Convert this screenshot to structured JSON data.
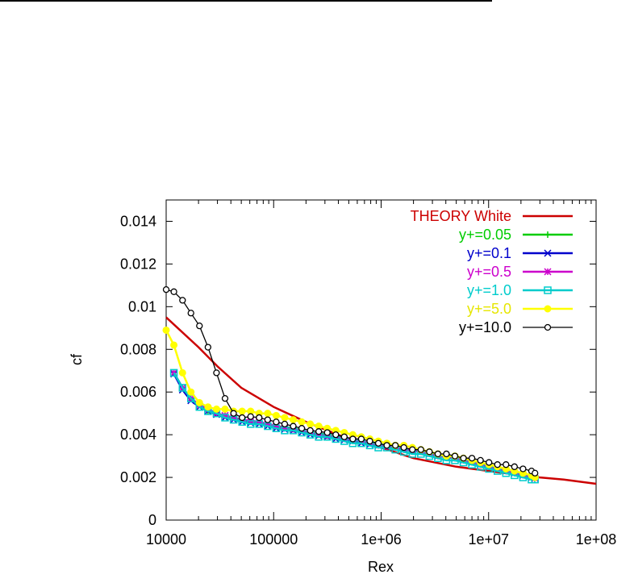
{
  "chart_data": {
    "type": "line",
    "xlabel": "Rex",
    "ylabel": "cf",
    "xscale": "log",
    "xlim": [
      10000,
      100000000
    ],
    "ylim": [
      0,
      0.015
    ],
    "xticks": [
      10000,
      100000,
      1000000,
      10000000,
      100000000
    ],
    "xtick_labels": [
      "10000",
      "100000",
      "1e+06",
      "1e+07",
      "1e+08"
    ],
    "yticks": [
      0,
      0.002,
      0.004,
      0.006,
      0.008,
      0.01,
      0.012,
      0.014
    ],
    "ytick_labels": [
      "0",
      "0.002",
      "0.004",
      "0.006",
      "0.008",
      "0.01",
      "0.012",
      "0.014"
    ],
    "grid": false,
    "legend_position": "top-right",
    "series": [
      {
        "name": "THEORY White",
        "color": "#cc0000",
        "marker": "none",
        "x": [
          10000,
          20000,
          30000,
          50000,
          100000,
          200000,
          500000,
          1000000,
          2000000,
          5000000,
          10000000,
          20000000,
          30000000,
          50000000,
          100000000
        ],
        "y": [
          0.0095,
          0.0081,
          0.0072,
          0.0062,
          0.0053,
          0.0046,
          0.0038,
          0.0034,
          0.0029,
          0.0025,
          0.0023,
          0.0021,
          0.002,
          0.0019,
          0.0017
        ]
      },
      {
        "name": "y+=0.05",
        "color": "#00cc00",
        "marker": "plus",
        "x": [
          11800,
          14200,
          17000,
          20400,
          24500,
          29400,
          35300,
          42400,
          50900,
          61100,
          73300,
          88000,
          105600,
          126700,
          152100,
          182500,
          219000,
          262800,
          315400,
          378500,
          454200,
          545000,
          654000,
          784800,
          941800,
          1130000,
          1356000,
          1627000,
          1953000,
          2344000,
          2812000,
          3375000,
          4050000,
          4860000,
          5832000,
          6998000,
          8398000,
          10078000,
          12093000,
          14512000,
          17414000,
          20897000,
          25076000,
          27000000
        ],
        "y": [
          0.0069,
          0.0062,
          0.0057,
          0.0054,
          0.0051,
          0.005,
          0.0049,
          0.0048,
          0.0047,
          0.00465,
          0.0046,
          0.0045,
          0.0044,
          0.00435,
          0.0043,
          0.0042,
          0.0041,
          0.00405,
          0.004,
          0.0039,
          0.00385,
          0.0038,
          0.0037,
          0.0036,
          0.00355,
          0.0035,
          0.0034,
          0.0033,
          0.00325,
          0.0032,
          0.0031,
          0.003,
          0.00295,
          0.0029,
          0.0028,
          0.0027,
          0.0026,
          0.0025,
          0.0024,
          0.0023,
          0.0022,
          0.0021,
          0.002,
          0.00195
        ]
      },
      {
        "name": "y+=0.1",
        "color": "#0000cc",
        "marker": "cross",
        "x": [
          11800,
          14200,
          17000,
          20400,
          24500,
          29400,
          35300,
          42400,
          50900,
          61100,
          73300,
          88000,
          105600,
          126700,
          152100,
          182500,
          219000,
          262800,
          315400,
          378500,
          454200,
          545000,
          654000,
          784800,
          941800,
          1130000,
          1356000,
          1627000,
          1953000,
          2344000,
          2812000,
          3375000,
          4050000,
          4860000,
          5832000,
          6998000,
          8398000,
          10078000,
          12093000,
          14512000,
          17414000,
          20897000,
          25076000,
          27000000
        ],
        "y": [
          0.00685,
          0.0061,
          0.0056,
          0.0053,
          0.0051,
          0.00495,
          0.0048,
          0.0047,
          0.0046,
          0.00455,
          0.0045,
          0.0044,
          0.0043,
          0.00425,
          0.0042,
          0.0041,
          0.004,
          0.00395,
          0.0039,
          0.0038,
          0.00375,
          0.0037,
          0.0036,
          0.00355,
          0.0035,
          0.00345,
          0.0034,
          0.0033,
          0.00325,
          0.0032,
          0.0031,
          0.003,
          0.00295,
          0.0029,
          0.0028,
          0.0027,
          0.0026,
          0.0025,
          0.0024,
          0.0023,
          0.0022,
          0.0021,
          0.002,
          0.00195
        ]
      },
      {
        "name": "y+=0.5",
        "color": "#cc00cc",
        "marker": "star",
        "x": [
          11800,
          14200,
          17000,
          20400,
          24500,
          29400,
          35300,
          42400,
          50900,
          61100,
          73300,
          88000,
          105600,
          126700,
          152100,
          182500,
          219000,
          262800,
          315400,
          378500,
          454200,
          545000,
          654000,
          784800,
          941800,
          1130000,
          1356000,
          1627000,
          1953000,
          2344000,
          2812000,
          3375000,
          4050000,
          4860000,
          5832000,
          6998000,
          8398000,
          10078000,
          12093000,
          14512000,
          17414000,
          20897000,
          25076000,
          27000000
        ],
        "y": [
          0.0069,
          0.0062,
          0.0057,
          0.0054,
          0.0052,
          0.005,
          0.0049,
          0.0048,
          0.0047,
          0.00465,
          0.0046,
          0.0045,
          0.0044,
          0.0043,
          0.00425,
          0.0042,
          0.0041,
          0.004,
          0.00395,
          0.0039,
          0.0038,
          0.00375,
          0.0037,
          0.0036,
          0.0035,
          0.00345,
          0.0034,
          0.0033,
          0.00325,
          0.0032,
          0.0031,
          0.003,
          0.00295,
          0.0029,
          0.0028,
          0.0027,
          0.0026,
          0.0025,
          0.0024,
          0.0023,
          0.0022,
          0.0021,
          0.002,
          0.00195
        ]
      },
      {
        "name": "y+=1.0",
        "color": "#00cccc",
        "marker": "square",
        "x": [
          11800,
          14200,
          17000,
          20400,
          24500,
          29400,
          35300,
          42400,
          50900,
          61100,
          73300,
          88000,
          105600,
          126700,
          152100,
          182500,
          219000,
          262800,
          315400,
          378500,
          454200,
          545000,
          654000,
          784800,
          941800,
          1130000,
          1356000,
          1627000,
          1953000,
          2344000,
          2812000,
          3375000,
          4050000,
          4860000,
          5832000,
          6998000,
          8398000,
          10078000,
          12093000,
          14512000,
          17414000,
          20897000,
          25076000,
          27000000
        ],
        "y": [
          0.0069,
          0.0062,
          0.0057,
          0.0053,
          0.0051,
          0.005,
          0.0048,
          0.0047,
          0.0046,
          0.0045,
          0.0045,
          0.0044,
          0.0043,
          0.0042,
          0.0042,
          0.0041,
          0.004,
          0.0039,
          0.0039,
          0.0038,
          0.0037,
          0.0036,
          0.0036,
          0.0035,
          0.0034,
          0.0034,
          0.0033,
          0.0032,
          0.0031,
          0.0031,
          0.003,
          0.0029,
          0.0028,
          0.0028,
          0.0027,
          0.0026,
          0.0025,
          0.0024,
          0.0023,
          0.0022,
          0.0021,
          0.002,
          0.0019,
          0.0019
        ]
      },
      {
        "name": "y+=5.0",
        "color": "#ffff00",
        "marker": "filled-circle",
        "x": [
          10000,
          11800,
          14200,
          17000,
          20400,
          24500,
          29400,
          35300,
          42400,
          50900,
          61100,
          73300,
          88000,
          105600,
          126700,
          152100,
          182500,
          219000,
          262800,
          315400,
          378500,
          454200,
          545000,
          654000,
          784800,
          941800,
          1130000,
          1356000,
          1627000,
          1953000,
          2344000,
          2812000,
          3375000,
          4050000,
          4860000,
          5832000,
          6998000,
          8398000,
          10078000,
          12093000,
          14512000,
          17414000,
          20897000,
          25076000,
          27000000
        ],
        "y": [
          0.0089,
          0.0082,
          0.0069,
          0.006,
          0.0055,
          0.0053,
          0.0052,
          0.0052,
          0.0051,
          0.0051,
          0.0051,
          0.005,
          0.005,
          0.0049,
          0.0048,
          0.0047,
          0.0046,
          0.0045,
          0.0044,
          0.0043,
          0.0042,
          0.0041,
          0.004,
          0.0039,
          0.0038,
          0.0037,
          0.0036,
          0.0035,
          0.0035,
          0.0034,
          0.0033,
          0.0032,
          0.0031,
          0.003,
          0.003,
          0.0029,
          0.0028,
          0.0027,
          0.0026,
          0.0025,
          0.0024,
          0.0023,
          0.0022,
          0.0021,
          0.002
        ]
      },
      {
        "name": "y+=10.0",
        "color": "#000000",
        "marker": "open-circle",
        "x": [
          10000,
          11800,
          14200,
          17000,
          20400,
          24500,
          29400,
          35300,
          42400,
          50900,
          61100,
          73300,
          88000,
          105600,
          126700,
          152100,
          182500,
          219000,
          262800,
          315400,
          378500,
          454200,
          545000,
          654000,
          784800,
          941800,
          1130000,
          1356000,
          1627000,
          1953000,
          2344000,
          2812000,
          3375000,
          4050000,
          4860000,
          5832000,
          6998000,
          8398000,
          10078000,
          12093000,
          14512000,
          17414000,
          20897000,
          25076000,
          27000000
        ],
        "y": [
          0.0108,
          0.0107,
          0.0103,
          0.0097,
          0.0091,
          0.0081,
          0.0069,
          0.0057,
          0.005,
          0.0048,
          0.00485,
          0.0048,
          0.0047,
          0.0046,
          0.0045,
          0.0044,
          0.0043,
          0.0042,
          0.00415,
          0.0041,
          0.004,
          0.0039,
          0.0038,
          0.0038,
          0.0037,
          0.0036,
          0.0035,
          0.0035,
          0.0034,
          0.0033,
          0.0033,
          0.0032,
          0.0031,
          0.0031,
          0.003,
          0.0029,
          0.0029,
          0.0028,
          0.0027,
          0.0026,
          0.0026,
          0.0025,
          0.0024,
          0.0023,
          0.0022
        ]
      }
    ]
  }
}
